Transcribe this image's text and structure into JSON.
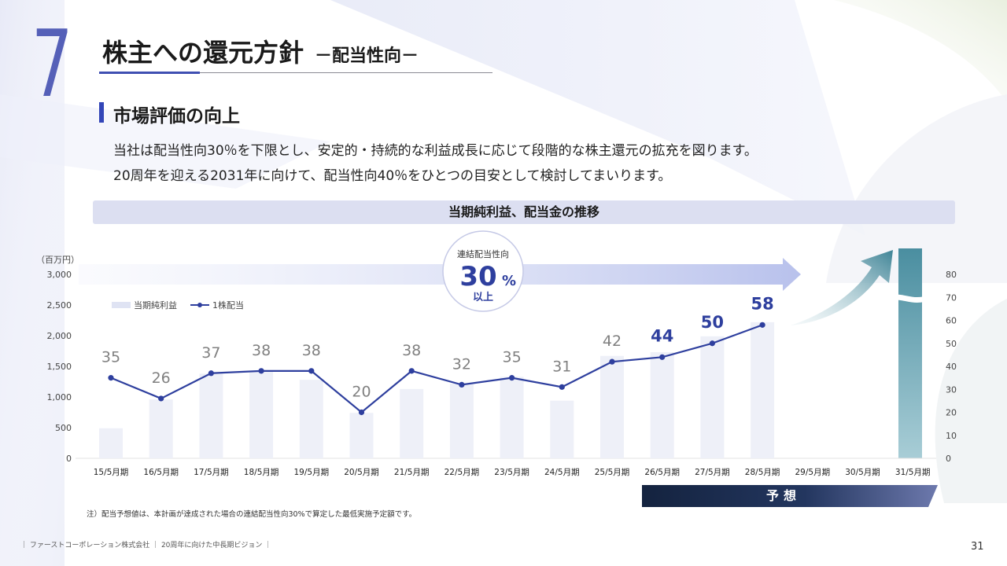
{
  "slide": {
    "section_number": "7",
    "title": "株主への還元方針",
    "subtitle": "－配当性向－",
    "section_heading": "市場評価の向上",
    "body_lines": [
      "当社は配当性向30％を下限とし、安定的・持続的な利益成長に応じて段階的な株主還元の拡充を図ります。",
      "20周年を迎える2031年に向けて、配当性向40％をひとつの目安として検討してまいります。"
    ],
    "chart_heading": "当期純利益、配当金の推移",
    "forecast_label": "予想",
    "note": "注）配当予想値は、本計画が達成された場合の連結配当性向30%で算定した最低実施予定額です。",
    "footer": "｜ ファーストコーポレーション株式会社 ｜ 20周年に向けた中長期ビジョン ｜",
    "page_number": "31",
    "payout_badge": {
      "label": "連結配当性向",
      "value": "30",
      "unit": "%",
      "suffix": "以上"
    },
    "colors": {
      "accent": "#3346b8",
      "line": "#2e3f9e",
      "bar": "#eef0f8",
      "forecast_dark": "#14233f",
      "arrow_teal": "#4a8ea0"
    }
  },
  "chart_data": {
    "type": "bar",
    "categories": [
      "15/5月期",
      "16/5月期",
      "17/5月期",
      "18/5月期",
      "19/5月期",
      "20/5月期",
      "21/5月期",
      "22/5月期",
      "23/5月期",
      "24/5月期",
      "25/5月期",
      "26/5月期",
      "27/5月期",
      "28/5月期",
      "29/5月期",
      "30/5月期",
      "31/5月期"
    ],
    "y_unit_label": "（百万円）",
    "ylim": [
      0,
      3000
    ],
    "yticks": [
      0,
      500,
      1000,
      1500,
      2000,
      2500,
      3000
    ],
    "y2lim": [
      0,
      80
    ],
    "y2ticks": [
      0,
      10,
      20,
      30,
      40,
      50,
      60,
      70,
      80
    ],
    "series": [
      {
        "name": "当期純利益",
        "type": "bar",
        "axis": "left",
        "values": [
          490,
          960,
          1380,
          1430,
          1280,
          740,
          1130,
          1220,
          1330,
          940,
          1670,
          1730,
          1990,
          2220,
          null,
          null,
          null
        ]
      },
      {
        "name": "1株配当",
        "type": "line",
        "axis": "right",
        "values": [
          35,
          26,
          37,
          38,
          38,
          20,
          38,
          32,
          35,
          31,
          42,
          44,
          50,
          58,
          null,
          null,
          null
        ],
        "labels": [
          "35",
          "26",
          "37",
          "38",
          "38",
          "20",
          "38",
          "32",
          "35",
          "31",
          "42",
          "44",
          "50",
          "58",
          "",
          "",
          ""
        ],
        "highlight_from_index": 11
      }
    ],
    "legend_position": "top-left",
    "grid": false
  }
}
